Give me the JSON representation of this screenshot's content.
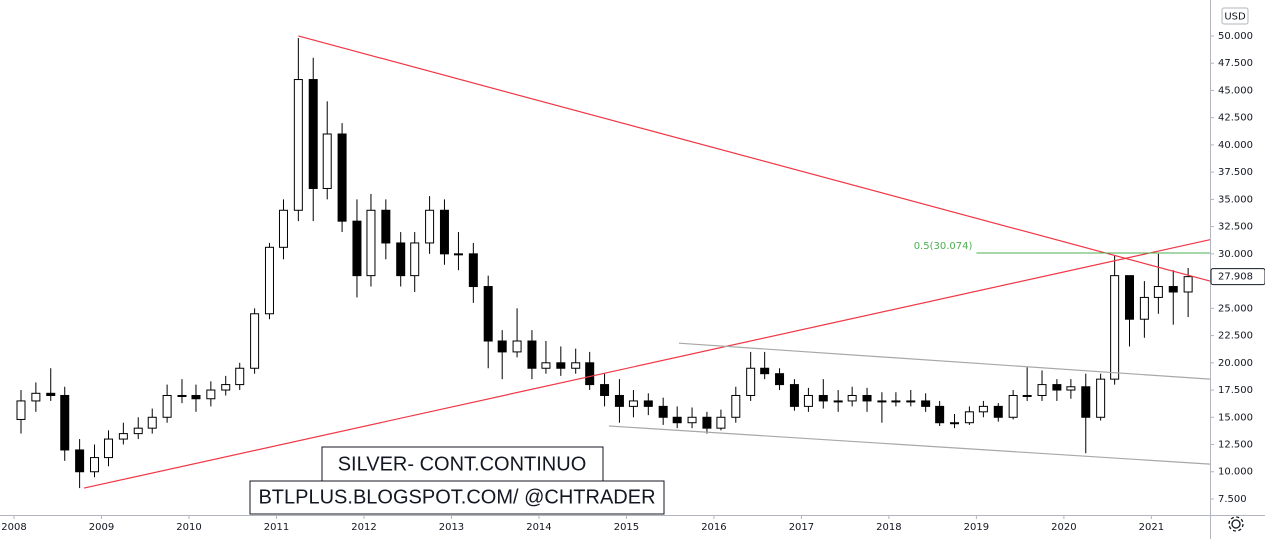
{
  "chart_data": {
    "type": "candlestick",
    "title": "SILVER- CONT.CONTINUO",
    "subtitle": "BTLPLUS.BLOGSPOT.COM/ @CHTRADER",
    "currency": "USD",
    "up_color": "#ffffff",
    "down_color": "#000000",
    "xlim": [
      2007.84,
      2021.67
    ],
    "xticks": [
      2008,
      2009,
      2010,
      2011,
      2012,
      2013,
      2014,
      2015,
      2016,
      2017,
      2018,
      2019,
      2020,
      2021
    ],
    "ylim": [
      6.03,
      53.3
    ],
    "yticks": [
      {
        "value": 7.5,
        "label": "7.500"
      },
      {
        "value": 10,
        "label": "10.000"
      },
      {
        "value": 12.5,
        "label": "12.500"
      },
      {
        "value": 15,
        "label": "15.000"
      },
      {
        "value": 17.5,
        "label": "17.500"
      },
      {
        "value": 20,
        "label": "20.000"
      },
      {
        "value": 22.5,
        "label": "22.500"
      },
      {
        "value": 25,
        "label": "25.000"
      },
      {
        "value": 30,
        "label": "30.000"
      },
      {
        "value": 32.5,
        "label": "32.500"
      },
      {
        "value": 35,
        "label": "35.000"
      },
      {
        "value": 37.5,
        "label": "37.500"
      },
      {
        "value": 40,
        "label": "40.000"
      },
      {
        "value": 42.5,
        "label": "42.500"
      },
      {
        "value": 45,
        "label": "45.000"
      },
      {
        "value": 47.5,
        "label": "47.500"
      },
      {
        "value": 50,
        "label": "50.000"
      }
    ],
    "x": [
      2008.08,
      2008.25,
      2008.42,
      2008.58,
      2008.75,
      2008.92,
      2009.08,
      2009.25,
      2009.42,
      2009.58,
      2009.75,
      2009.92,
      2010.08,
      2010.25,
      2010.42,
      2010.58,
      2010.75,
      2010.92,
      2011.08,
      2011.25,
      2011.42,
      2011.58,
      2011.75,
      2011.92,
      2012.08,
      2012.25,
      2012.42,
      2012.58,
      2012.75,
      2012.92,
      2013.08,
      2013.25,
      2013.42,
      2013.58,
      2013.75,
      2013.92,
      2014.08,
      2014.25,
      2014.42,
      2014.58,
      2014.75,
      2014.92,
      2015.08,
      2015.25,
      2015.42,
      2015.58,
      2015.75,
      2015.92,
      2016.08,
      2016.25,
      2016.42,
      2016.58,
      2016.75,
      2016.92,
      2017.08,
      2017.25,
      2017.42,
      2017.58,
      2017.75,
      2017.92,
      2018.08,
      2018.25,
      2018.42,
      2018.58,
      2018.75,
      2018.92,
      2019.08,
      2019.25,
      2019.42,
      2019.58,
      2019.75,
      2019.92,
      2020.08,
      2020.25,
      2020.42,
      2020.58,
      2020.75,
      2020.92,
      2021.08,
      2021.25,
      2021.42
    ],
    "open": [
      14.8,
      16.5,
      17.2,
      17.0,
      12.0,
      10.0,
      11.3,
      13.0,
      13.5,
      14.0,
      15.0,
      17.0,
      17.0,
      16.7,
      17.5,
      18.0,
      19.5,
      24.5,
      30.6,
      34,
      46,
      36,
      41,
      33,
      28,
      34,
      31,
      28,
      31,
      34,
      30,
      30,
      27,
      22,
      21,
      22,
      19.5,
      20,
      19.5,
      20,
      18,
      17,
      16,
      16.5,
      16,
      15,
      14.5,
      15,
      14,
      15,
      17,
      19.5,
      19,
      18,
      16,
      17,
      16.5,
      16.5,
      17,
      16.5,
      16.5,
      16.5,
      16.5,
      16,
      14.5,
      14.5,
      15.5,
      16,
      15,
      17,
      17,
      18,
      17.5,
      17.8,
      15,
      18.5,
      28,
      24,
      26,
      27,
      26.5
    ],
    "high": [
      17.5,
      18.2,
      19.5,
      17.8,
      13,
      12.5,
      13.8,
      14.5,
      15,
      15.8,
      18,
      18.5,
      18,
      18.3,
      18.8,
      20,
      25,
      31,
      35,
      49.8,
      48,
      44,
      42,
      35,
      35.5,
      35,
      32,
      32,
      35.3,
      35,
      32,
      31,
      28,
      23,
      25,
      23,
      22,
      21.5,
      21.3,
      21,
      19,
      18.5,
      17.5,
      17.2,
      16.8,
      16,
      15.9,
      15.5,
      15.7,
      17.8,
      21,
      21,
      19.5,
      18.5,
      17.7,
      18.5,
      17.5,
      17.8,
      17.7,
      17.3,
      17.3,
      17.5,
      17.2,
      16.5,
      15.3,
      16,
      16.5,
      16.3,
      17.5,
      19.6,
      19.3,
      18.5,
      18.5,
      19,
      19,
      29.8,
      28,
      27.5,
      30,
      28.5,
      28.7
    ],
    "low": [
      13.5,
      15.5,
      16.5,
      11,
      8.5,
      9.5,
      10.5,
      12.5,
      13,
      13.5,
      14.5,
      16.3,
      15.5,
      16,
      17,
      17.5,
      19,
      24,
      29.5,
      33,
      33,
      35,
      32,
      26,
      27,
      29.5,
      27,
      26.5,
      30,
      29,
      28.5,
      25.5,
      19.5,
      18.5,
      20.5,
      18.5,
      19,
      18.8,
      19,
      17.5,
      16,
      14.5,
      15,
      15.2,
      14.3,
      14,
      14,
      13.5,
      13.8,
      14.5,
      16.5,
      18.5,
      17.5,
      15.6,
      15.5,
      15.8,
      15.5,
      16,
      15.5,
      14.5,
      16,
      16,
      15.5,
      14.2,
      14,
      14.3,
      15,
      14.6,
      14.8,
      16.5,
      16.5,
      16.5,
      16.7,
      11.7,
      14.7,
      18,
      21.5,
      22.3,
      24.5,
      23.5,
      24.2
    ],
    "close": [
      16.5,
      17.2,
      17.0,
      12.0,
      10.0,
      11.3,
      13.0,
      13.5,
      14.0,
      15.0,
      17.0,
      17.0,
      16.7,
      17.5,
      18.0,
      19.5,
      24.5,
      30.6,
      34,
      46,
      36,
      41,
      33,
      28,
      34,
      31,
      28,
      31,
      34,
      30,
      30,
      27,
      22,
      21,
      22,
      19.5,
      20,
      19.5,
      20,
      18,
      17,
      16,
      16.5,
      16,
      15,
      14.5,
      15,
      14,
      15,
      17,
      19.5,
      19,
      18,
      16,
      17,
      16.5,
      16.5,
      17,
      16.5,
      16.5,
      16.5,
      16.5,
      16,
      14.5,
      14.5,
      15.5,
      16,
      15,
      17,
      17,
      18,
      17.5,
      17.8,
      15,
      18.5,
      28,
      24,
      26,
      27,
      26.5,
      27.908
    ],
    "lines": [
      {
        "x": [
          2011.25,
          2021.67
        ],
        "y": [
          50,
          27.5
        ],
        "color": "#f23645"
      },
      {
        "x": [
          2008.8,
          2021.67
        ],
        "y": [
          8.5,
          31.3
        ],
        "color": "#f23645"
      },
      {
        "x": [
          2015.6,
          2021.67
        ],
        "y": [
          21.8,
          18.5
        ],
        "color": "#a8a8a8"
      },
      {
        "x": [
          2014.8,
          2021.67
        ],
        "y": [
          14.2,
          10.7
        ],
        "color": "#a8a8a8"
      }
    ],
    "fib": {
      "label": "0.5(30.074)",
      "value": 30.074,
      "x": [
        2019.0,
        2021.67
      ],
      "color": "#4caf50"
    }
  }
}
